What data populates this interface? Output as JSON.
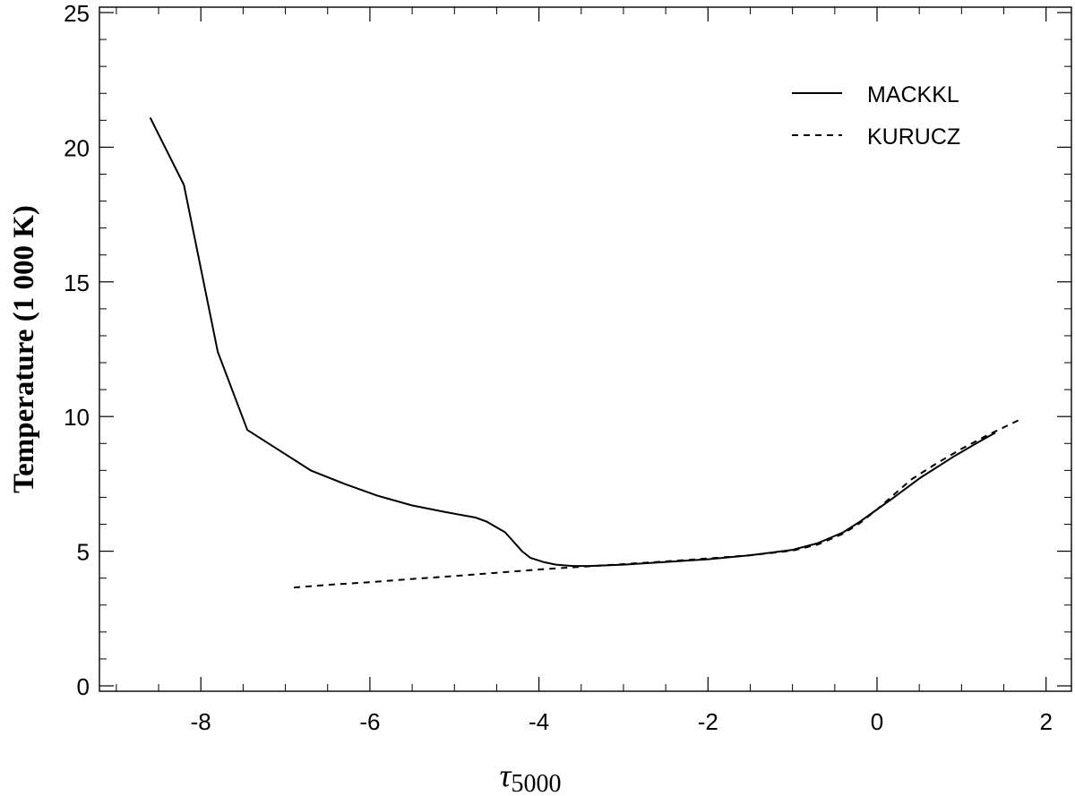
{
  "chart_data": {
    "type": "line",
    "title": "",
    "xlabel_main": "τ",
    "xlabel_sub": "5000",
    "ylabel": "Temperature (1 000 K)",
    "xlim": [
      -9.2,
      2.3
    ],
    "ylim": [
      -0.2,
      25.2
    ],
    "x_ticks_major": [
      -8,
      -6,
      -4,
      -2,
      0,
      2
    ],
    "x_tick_labels": [
      "-8",
      "-6",
      "-4",
      "-2",
      "0",
      "2"
    ],
    "y_ticks_major": [
      0,
      5,
      10,
      15,
      20,
      25
    ],
    "y_tick_labels": [
      "0",
      "5",
      "10",
      "15",
      "20",
      "25"
    ],
    "legend_position": "top-right",
    "series": [
      {
        "name": "MACKKL",
        "dash": "solid",
        "color": "#000000",
        "x": [
          -8.6,
          -8.2,
          -7.8,
          -7.45,
          -7.0,
          -6.7,
          -6.3,
          -5.9,
          -5.5,
          -5.1,
          -4.75,
          -4.62,
          -4.4,
          -4.2,
          -4.1,
          -3.95,
          -3.8,
          -3.6,
          -3.4,
          -3.0,
          -2.5,
          -2.0,
          -1.5,
          -1.0,
          -0.7,
          -0.4,
          -0.2,
          0.0,
          0.2,
          0.5,
          0.9,
          1.2,
          1.4
        ],
        "y": [
          21.1,
          18.6,
          12.4,
          9.5,
          8.6,
          8.0,
          7.5,
          7.05,
          6.7,
          6.45,
          6.25,
          6.1,
          5.7,
          5.0,
          4.75,
          4.6,
          4.5,
          4.45,
          4.45,
          4.5,
          4.6,
          4.7,
          4.85,
          5.05,
          5.3,
          5.7,
          6.1,
          6.55,
          7.0,
          7.7,
          8.5,
          9.05,
          9.4
        ]
      },
      {
        "name": "KURUCZ",
        "dash": "dashed",
        "color": "#000000",
        "x": [
          -6.9,
          -6.5,
          -6.0,
          -5.5,
          -5.0,
          -4.5,
          -4.0,
          -3.5,
          -3.0,
          -2.5,
          -2.0,
          -1.5,
          -1.0,
          -0.7,
          -0.4,
          -0.2,
          0.0,
          0.2,
          0.4,
          0.7,
          1.0,
          1.3,
          1.7
        ],
        "y": [
          3.65,
          3.75,
          3.85,
          3.97,
          4.08,
          4.2,
          4.32,
          4.42,
          4.52,
          4.62,
          4.73,
          4.85,
          5.02,
          5.25,
          5.65,
          6.05,
          6.55,
          7.1,
          7.65,
          8.25,
          8.8,
          9.3,
          9.9
        ]
      }
    ]
  }
}
